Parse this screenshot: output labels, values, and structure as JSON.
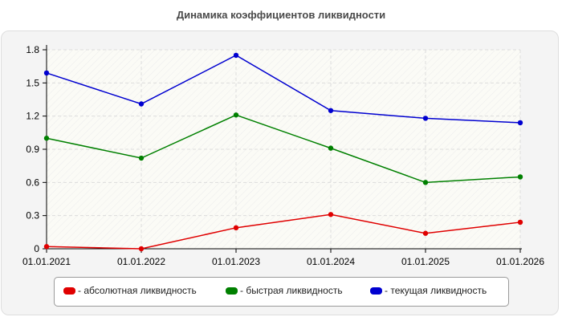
{
  "chart_data": {
    "type": "line",
    "title": "Динамика коэффициентов ликвидности",
    "x": [
      "01.01.2021",
      "01.01.2022",
      "01.01.2023",
      "01.01.2024",
      "01.01.2025",
      "01.01.2026"
    ],
    "y_ticks": [
      "0",
      "0.3",
      "0.6",
      "0.9",
      "1.2",
      "1.5",
      "1.8"
    ],
    "ylim": [
      0,
      1.8
    ],
    "grid": true,
    "legend_position": "bottom",
    "series": [
      {
        "name": "- абсолютная ликвидность",
        "color": "#e00000",
        "values": [
          0.02,
          0.0,
          0.19,
          0.31,
          0.14,
          0.24
        ]
      },
      {
        "name": "- быстрая ликвидность",
        "color": "#008000",
        "values": [
          1.0,
          0.82,
          1.21,
          0.91,
          0.6,
          0.65
        ]
      },
      {
        "name": "- текущая ликвидность",
        "color": "#0000d0",
        "values": [
          1.59,
          1.31,
          1.75,
          1.25,
          1.18,
          1.14
        ]
      }
    ]
  }
}
